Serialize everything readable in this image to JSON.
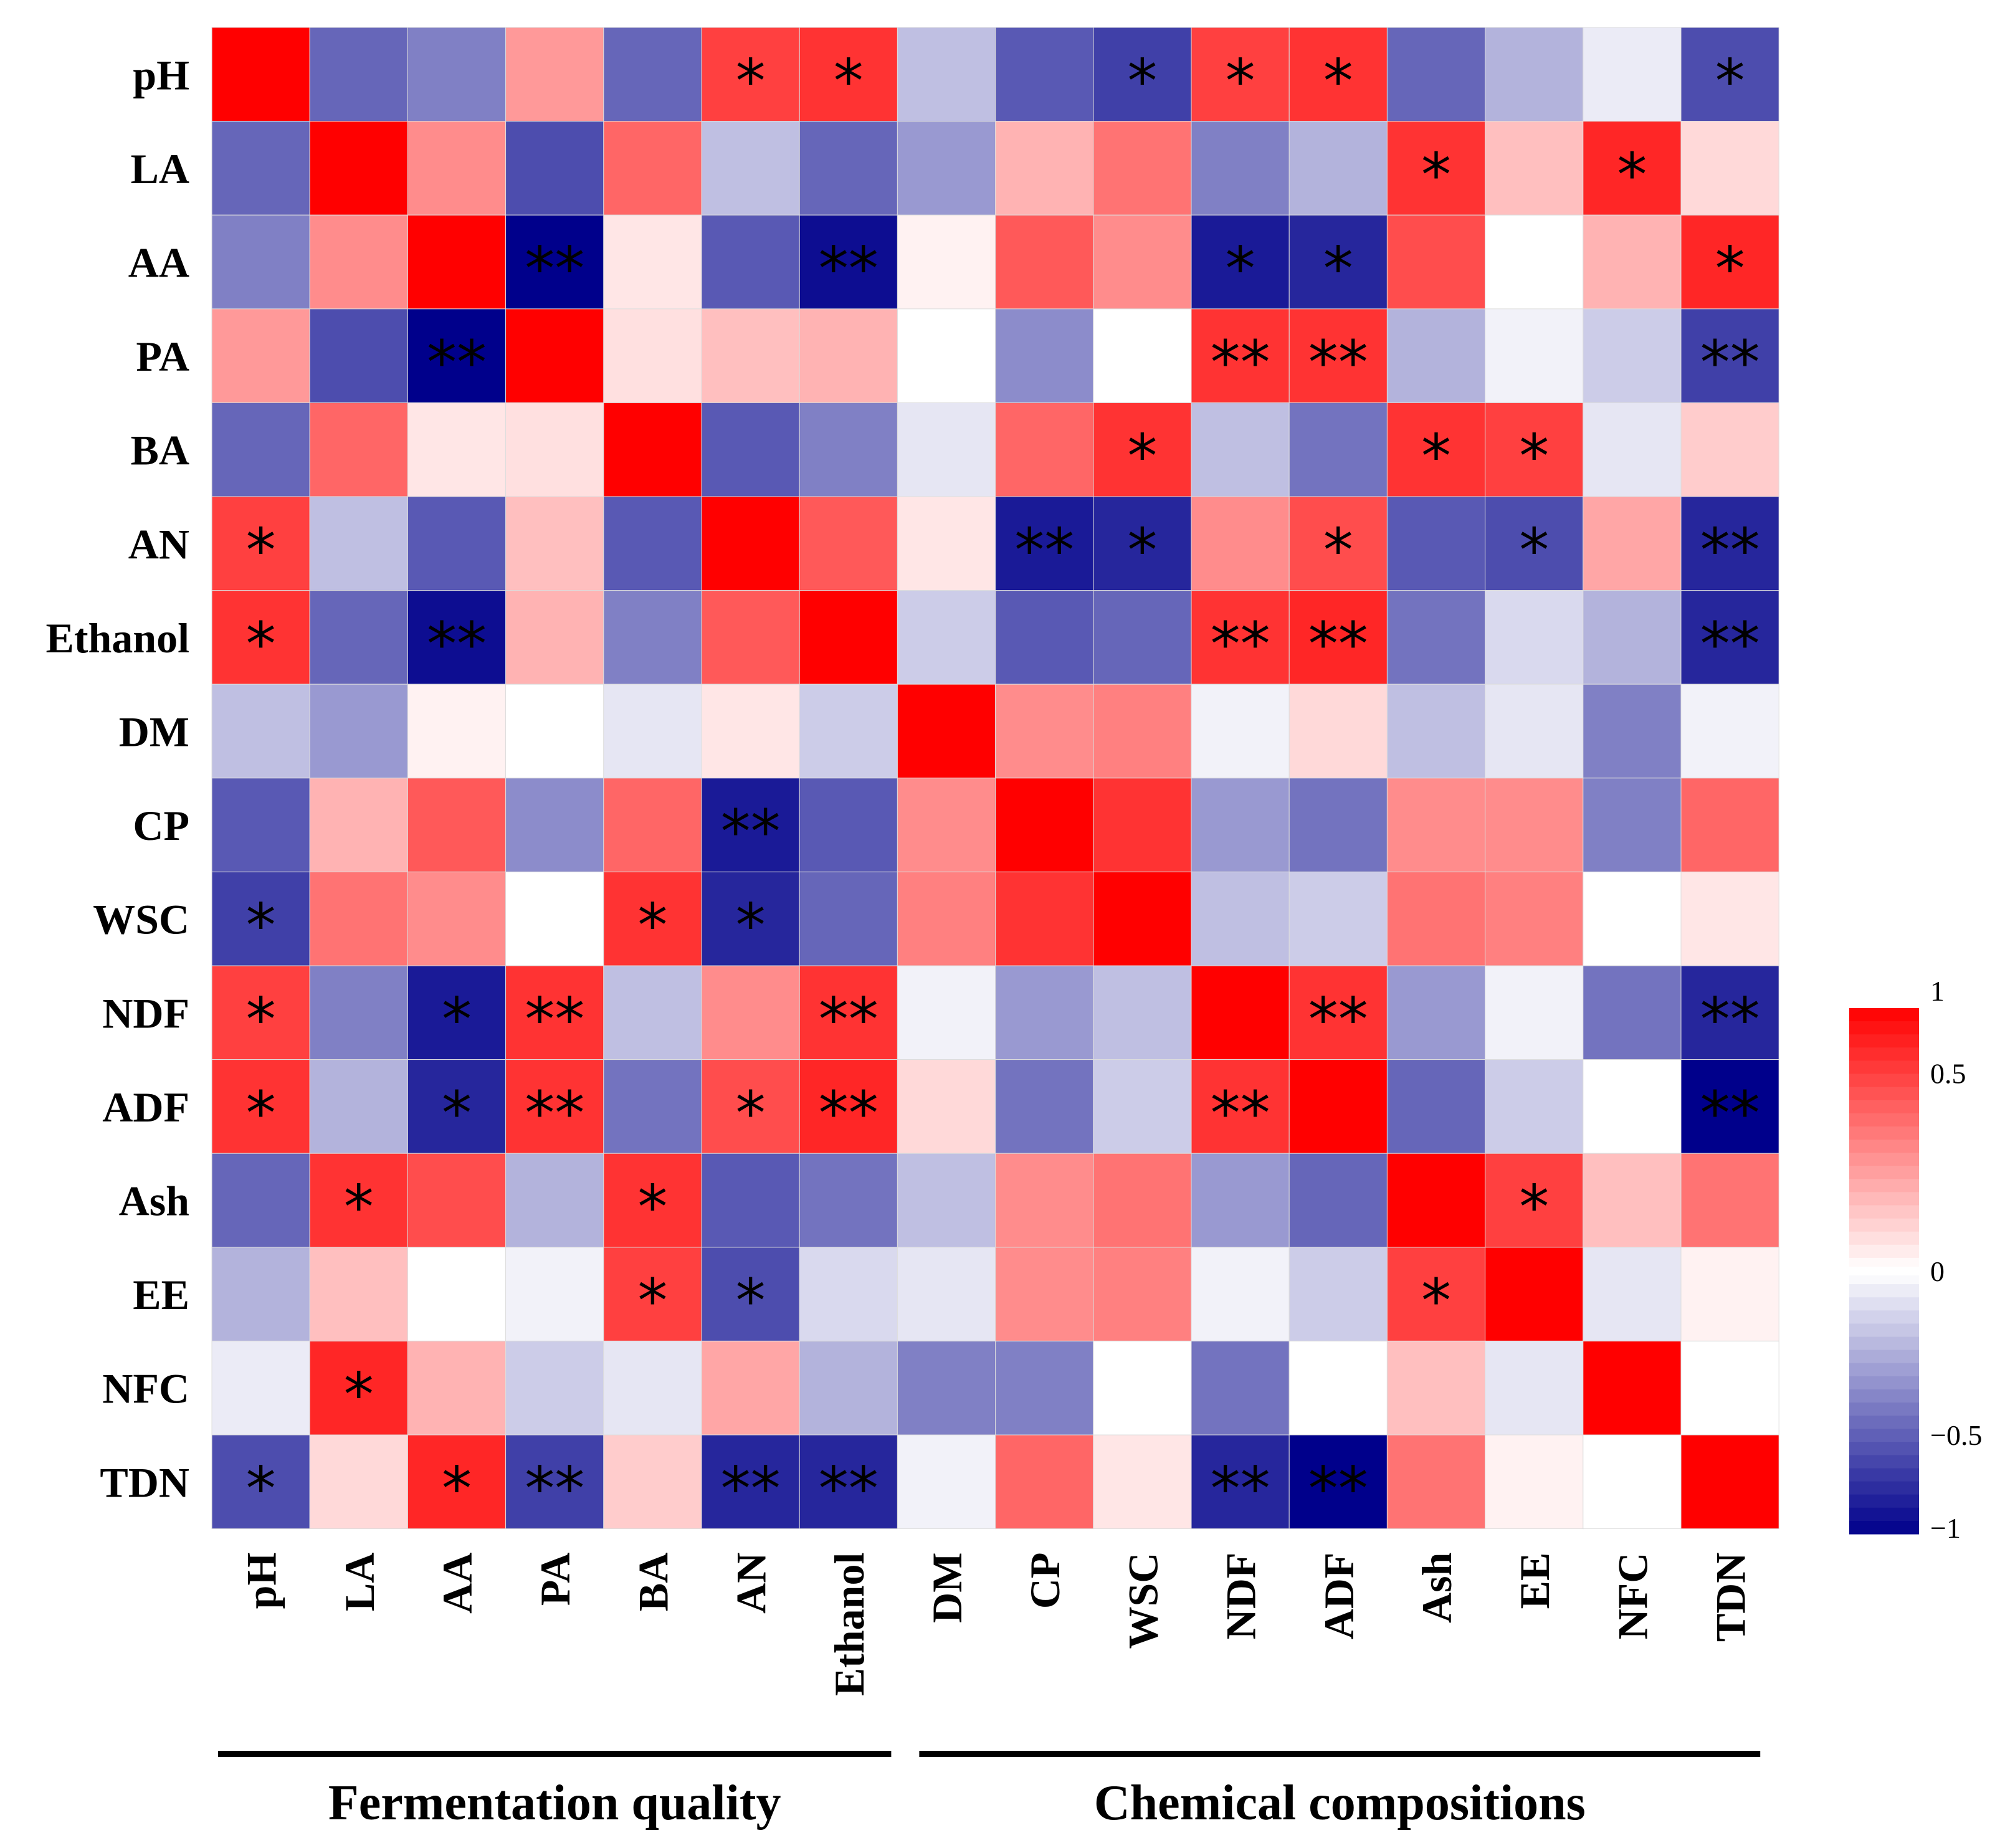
{
  "chart_data": {
    "type": "heatmap",
    "title": "",
    "row_labels": [
      "pH",
      "LA",
      "AA",
      "PA",
      "BA",
      "AN",
      "Ethanol",
      "DM",
      "CP",
      "WSC",
      "NDF",
      "ADF",
      "Ash",
      "EE",
      "NFC",
      "TDN"
    ],
    "col_labels": [
      "pH",
      "LA",
      "AA",
      "PA",
      "BA",
      "AN",
      "Ethanol",
      "DM",
      "CP",
      "WSC",
      "NDF",
      "ADF",
      "Ash",
      "EE",
      "NFC",
      "TDN"
    ],
    "values": [
      [
        1,
        -0.6,
        -0.5,
        0.4,
        -0.6,
        0.75,
        0.8,
        -0.25,
        -0.65,
        -0.75,
        0.75,
        0.8,
        -0.6,
        -0.3,
        -0.08,
        -0.7
      ],
      [
        -0.6,
        1,
        0.45,
        -0.7,
        0.6,
        -0.25,
        -0.6,
        -0.4,
        0.3,
        0.55,
        -0.5,
        -0.3,
        0.8,
        0.25,
        0.85,
        0.15
      ],
      [
        -0.5,
        0.45,
        1,
        -1.0,
        0.1,
        -0.65,
        -0.95,
        0.05,
        0.65,
        0.45,
        -0.9,
        -0.85,
        0.7,
        0.0,
        0.3,
        0.85
      ],
      [
        0.4,
        -0.7,
        -1.0,
        1,
        0.12,
        0.25,
        0.3,
        0.0,
        -0.45,
        0.0,
        0.8,
        0.8,
        -0.3,
        -0.05,
        -0.2,
        -0.75
      ],
      [
        -0.6,
        0.6,
        0.1,
        0.12,
        1,
        -0.65,
        -0.5,
        -0.1,
        0.6,
        0.8,
        -0.25,
        -0.55,
        0.8,
        0.75,
        -0.1,
        0.2
      ],
      [
        0.75,
        -0.25,
        -0.65,
        0.25,
        -0.65,
        1,
        0.65,
        0.1,
        -0.9,
        -0.85,
        0.45,
        0.7,
        -0.65,
        -0.7,
        0.35,
        -0.85
      ],
      [
        0.8,
        -0.6,
        -0.95,
        0.3,
        -0.5,
        0.65,
        1,
        -0.2,
        -0.65,
        -0.6,
        0.8,
        0.85,
        -0.55,
        -0.15,
        -0.3,
        -0.85
      ],
      [
        -0.25,
        -0.4,
        0.05,
        0.0,
        -0.1,
        0.1,
        -0.2,
        1,
        0.45,
        0.5,
        -0.05,
        0.15,
        -0.25,
        -0.1,
        -0.5,
        -0.05
      ],
      [
        -0.65,
        0.3,
        0.65,
        -0.45,
        0.6,
        -0.9,
        -0.65,
        0.45,
        1,
        0.8,
        -0.4,
        -0.55,
        0.45,
        0.45,
        -0.5,
        0.6
      ],
      [
        -0.75,
        0.55,
        0.45,
        0.0,
        0.8,
        -0.85,
        -0.6,
        0.5,
        0.8,
        1,
        -0.25,
        -0.2,
        0.55,
        0.5,
        0.0,
        0.1
      ],
      [
        0.75,
        -0.5,
        -0.9,
        0.8,
        -0.25,
        0.45,
        0.8,
        -0.05,
        -0.4,
        -0.25,
        1,
        0.8,
        -0.4,
        -0.05,
        -0.55,
        -0.85
      ],
      [
        0.8,
        -0.3,
        -0.85,
        0.8,
        -0.55,
        0.7,
        0.85,
        0.15,
        -0.55,
        -0.2,
        0.8,
        1,
        -0.6,
        -0.2,
        0.0,
        -1.0
      ],
      [
        -0.6,
        0.8,
        0.7,
        -0.3,
        0.8,
        -0.65,
        -0.55,
        -0.25,
        0.45,
        0.55,
        -0.4,
        -0.6,
        1,
        0.75,
        0.25,
        0.55
      ],
      [
        -0.3,
        0.25,
        0.0,
        -0.05,
        0.75,
        -0.7,
        -0.15,
        -0.1,
        0.45,
        0.5,
        -0.05,
        -0.2,
        0.75,
        1,
        -0.1,
        0.05
      ],
      [
        -0.08,
        0.85,
        0.3,
        -0.2,
        -0.1,
        0.35,
        -0.3,
        -0.5,
        -0.5,
        0.0,
        -0.55,
        0.0,
        0.25,
        -0.1,
        1,
        0.0
      ],
      [
        -0.7,
        0.15,
        0.85,
        -0.75,
        0.2,
        -0.85,
        -0.85,
        -0.05,
        0.6,
        0.1,
        -0.85,
        -1.0,
        0.55,
        0.05,
        0.0,
        1
      ]
    ],
    "significance": [
      [
        "",
        "",
        "",
        "",
        "",
        "*",
        "*",
        "",
        "",
        "*",
        "*",
        "*",
        "",
        "",
        "",
        "*"
      ],
      [
        "",
        "",
        "",
        "",
        "",
        "",
        "",
        "",
        "",
        "",
        "",
        "",
        "*",
        "",
        "*",
        ""
      ],
      [
        "",
        "",
        "",
        "**",
        "",
        "",
        "**",
        "",
        "",
        "",
        "*",
        "*",
        "",
        "",
        "",
        "*"
      ],
      [
        "",
        "",
        "**",
        "",
        "",
        "",
        "",
        "",
        "",
        "",
        "**",
        "**",
        "",
        "",
        "",
        "**"
      ],
      [
        "",
        "",
        "",
        "",
        "",
        "",
        "",
        "",
        "",
        "*",
        "",
        "",
        "*",
        "*",
        "",
        ""
      ],
      [
        "*",
        "",
        "",
        "",
        "",
        "",
        "",
        "",
        "**",
        "*",
        "",
        "*",
        "",
        "*",
        "",
        "**"
      ],
      [
        "*",
        "",
        "**",
        "",
        "",
        "",
        "",
        "",
        "",
        "",
        "**",
        "**",
        "",
        "",
        "",
        "**"
      ],
      [
        "",
        "",
        "",
        "",
        "",
        "",
        "",
        "",
        "",
        "",
        "",
        "",
        "",
        "",
        "",
        ""
      ],
      [
        "",
        "",
        "",
        "",
        "",
        "**",
        "",
        "",
        "",
        "",
        "",
        "",
        "",
        "",
        "",
        ""
      ],
      [
        "*",
        "",
        "",
        "",
        "*",
        "*",
        "",
        "",
        "",
        "",
        "",
        "",
        "",
        "",
        "",
        ""
      ],
      [
        "*",
        "",
        "*",
        "**",
        "",
        "",
        "**",
        "",
        "",
        "",
        "",
        "**",
        "",
        "",
        "",
        "**"
      ],
      [
        "*",
        "",
        "*",
        "**",
        "",
        "*",
        "**",
        "",
        "",
        "",
        "**",
        "",
        "",
        "",
        "",
        "**"
      ],
      [
        "",
        "*",
        "",
        "",
        "*",
        "",
        "",
        "",
        "",
        "",
        "",
        "",
        "",
        "*",
        "",
        ""
      ],
      [
        "",
        "",
        "",
        "",
        "*",
        "*",
        "",
        "",
        "",
        "",
        "",
        "",
        "*",
        "",
        "",
        ""
      ],
      [
        "",
        "*",
        "",
        "",
        "",
        "",
        "",
        "",
        "",
        "",
        "",
        "",
        "",
        "",
        "",
        ""
      ],
      [
        "*",
        "",
        "*",
        "**",
        "",
        "**",
        "**",
        "",
        "",
        "",
        "**",
        "**",
        "",
        "",
        "",
        ""
      ]
    ],
    "groups": [
      {
        "label": "Fermentation quality",
        "from": 0,
        "to": 6
      },
      {
        "label": "Chemical compositions",
        "from": 7,
        "to": 15
      }
    ],
    "colorbar": {
      "min": -1,
      "max": 1,
      "ticks": [
        "1",
        "0.5",
        "0",
        "−0.5",
        "−1"
      ],
      "tick_values": [
        1,
        0.5,
        0,
        -0.5,
        -1
      ]
    },
    "colors": {
      "low": "#00008b",
      "mid": "#ffffff",
      "high": "#ff0000"
    }
  }
}
